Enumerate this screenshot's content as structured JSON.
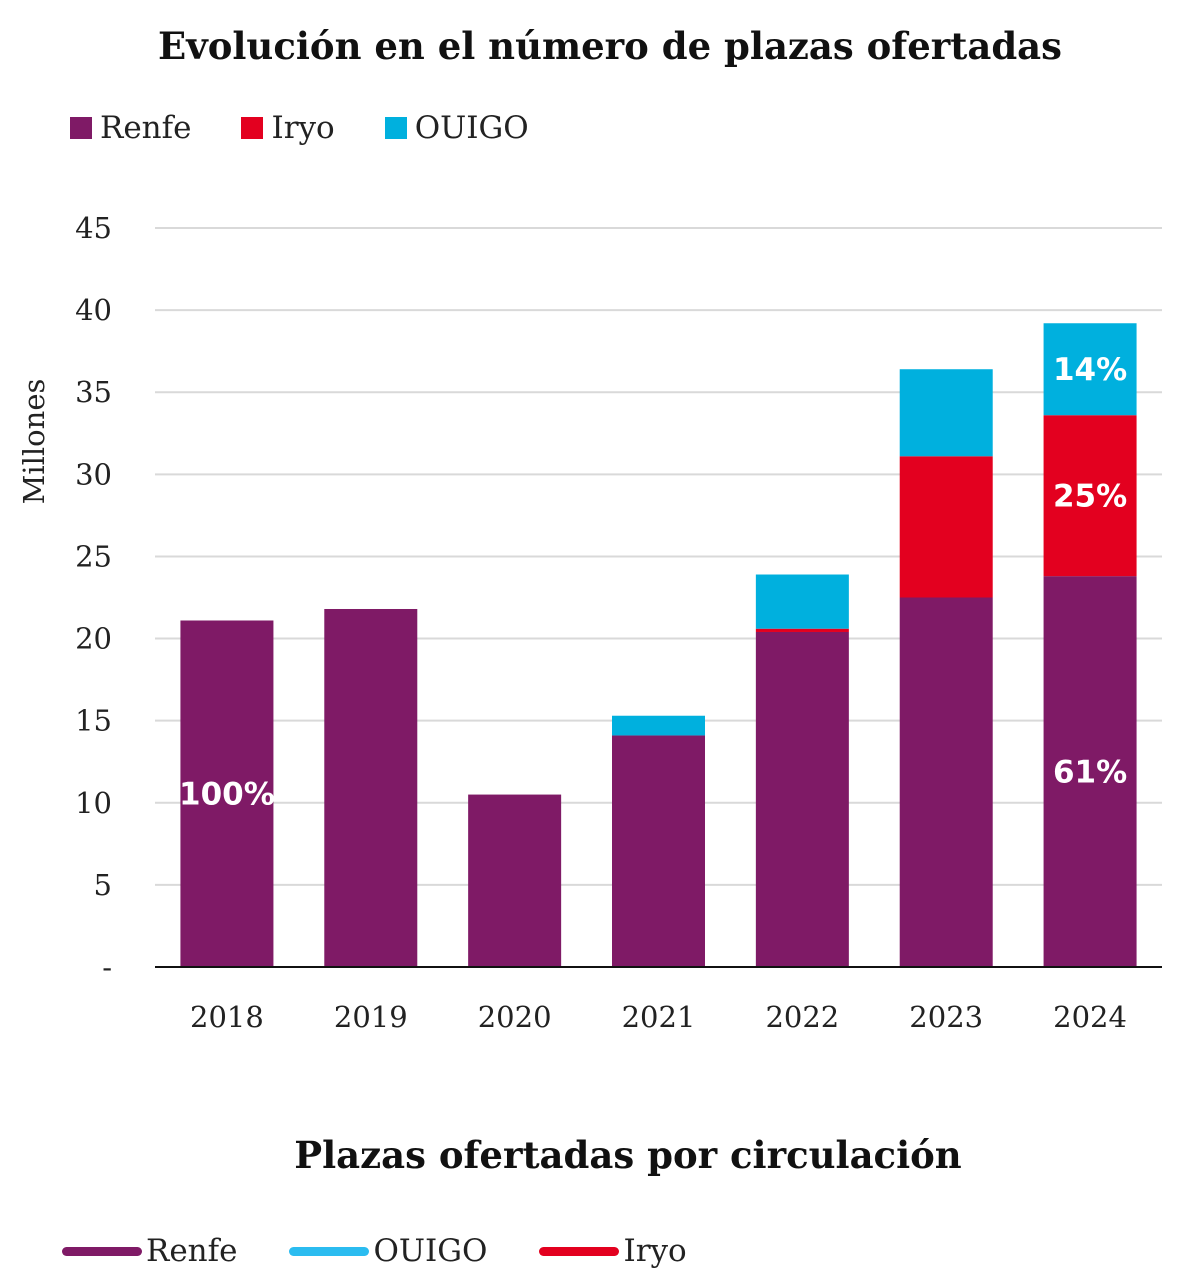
{
  "chart_data": {
    "type": "bar",
    "stacked": true,
    "title": "Evolución en el número de plazas ofertadas",
    "ylabel": "Millones",
    "xlabel": "",
    "ylim": [
      0,
      45
    ],
    "yticks": [
      0,
      5,
      10,
      15,
      20,
      25,
      30,
      35,
      40,
      45
    ],
    "ytick_labels": [
      "-",
      "5",
      "10",
      "15",
      "20",
      "25",
      "30",
      "35",
      "40",
      "45"
    ],
    "grid": true,
    "legend_position": "top-left",
    "categories": [
      "2018",
      "2019",
      "2020",
      "2021",
      "2022",
      "2023",
      "2024"
    ],
    "series": [
      {
        "name": "Renfe",
        "color": "#7f1a66",
        "values": [
          21.1,
          21.8,
          10.5,
          14.1,
          20.4,
          22.5,
          23.8
        ]
      },
      {
        "name": "Iryo",
        "color": "#e3001f",
        "values": [
          0,
          0,
          0,
          0,
          0.2,
          8.6,
          9.8
        ]
      },
      {
        "name": "OUIGO",
        "color": "#00b0de",
        "values": [
          0,
          0,
          0,
          1.2,
          3.3,
          5.3,
          5.6
        ]
      }
    ],
    "data_labels": [
      {
        "category": "2018",
        "series": "Renfe",
        "text": "100%"
      },
      {
        "category": "2024",
        "series": "Renfe",
        "text": "61%"
      },
      {
        "category": "2024",
        "series": "Iryo",
        "text": "25%"
      },
      {
        "category": "2024",
        "series": "OUIGO",
        "text": "14%"
      }
    ]
  },
  "second_chart": {
    "title": "Plazas ofertadas por circulación",
    "legend": [
      {
        "name": "Renfe",
        "color": "#7f1a66"
      },
      {
        "name": "OUIGO",
        "color": "#2bbcf0"
      },
      {
        "name": "Iryo",
        "color": "#e3001f"
      }
    ]
  }
}
